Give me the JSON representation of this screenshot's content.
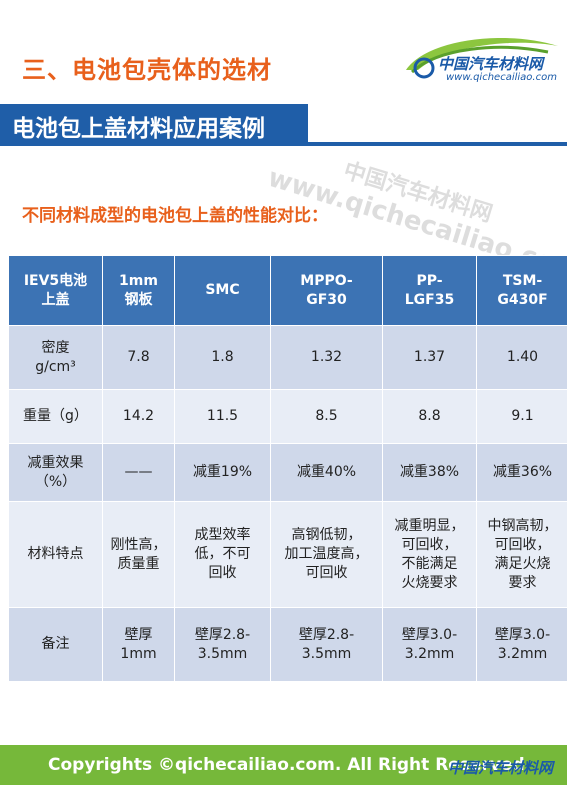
{
  "header": {
    "section_title": "三、电池包壳体的选材",
    "logo_text": "中国汽车材料网",
    "logo_url": "www.qichecailiao.com"
  },
  "banner": {
    "title": "电池包上盖材料应用案例"
  },
  "watermark": {
    "cn": "中国汽车材料网",
    "en": "www.qichecailiao.com"
  },
  "subtitle": "不同材料成型的电池包上盖的性能对比：",
  "table": {
    "headers": [
      "IEV5电池\n上盖",
      "1mm\n钢板",
      "SMC",
      "MPPO-\nGF30",
      "PP-\nLGF35",
      "TSM-\nG430F"
    ],
    "rows": [
      {
        "label": "密度\ng/cm³",
        "cells": [
          "7.8",
          "1.8",
          "1.32",
          "1.37",
          "1.40"
        ]
      },
      {
        "label": "重量（g）",
        "cells": [
          "14.2",
          "11.5",
          "8.5",
          "8.8",
          "9.1"
        ]
      },
      {
        "label": "减重效果\n（%）",
        "cells": [
          "——",
          "减重19%",
          "减重40%",
          "减重38%",
          "减重36%"
        ]
      },
      {
        "label": "材料特点",
        "cells": [
          "刚性高，\n质量重",
          "成型效率\n低，不可\n回收",
          "高钢低韧，\n加工温度高，\n可回收",
          "减重明显，\n可回收，\n不能满足\n火烧要求",
          "中钢高韧，\n可回收，\n满足火烧\n要求"
        ]
      },
      {
        "label": "备注",
        "cells": [
          "壁厚\n1mm",
          "壁厚2.8-\n3.5mm",
          "壁厚2.8-\n3.5mm",
          "壁厚3.0-\n3.2mm",
          "壁厚3.0-\n3.2mm"
        ]
      }
    ]
  },
  "footer": {
    "copyright": "Copyrights ©qichecailiao.com. All Right Reserved",
    "logo_text": "中国汽车材料网"
  },
  "colors": {
    "accent_orange": "#e8601c",
    "banner_blue": "#1f5ea8",
    "table_header": "#3c73b4",
    "row_odd": "#cfd8ea",
    "row_even": "#e8edf6",
    "footer_green": "#76b83a"
  }
}
